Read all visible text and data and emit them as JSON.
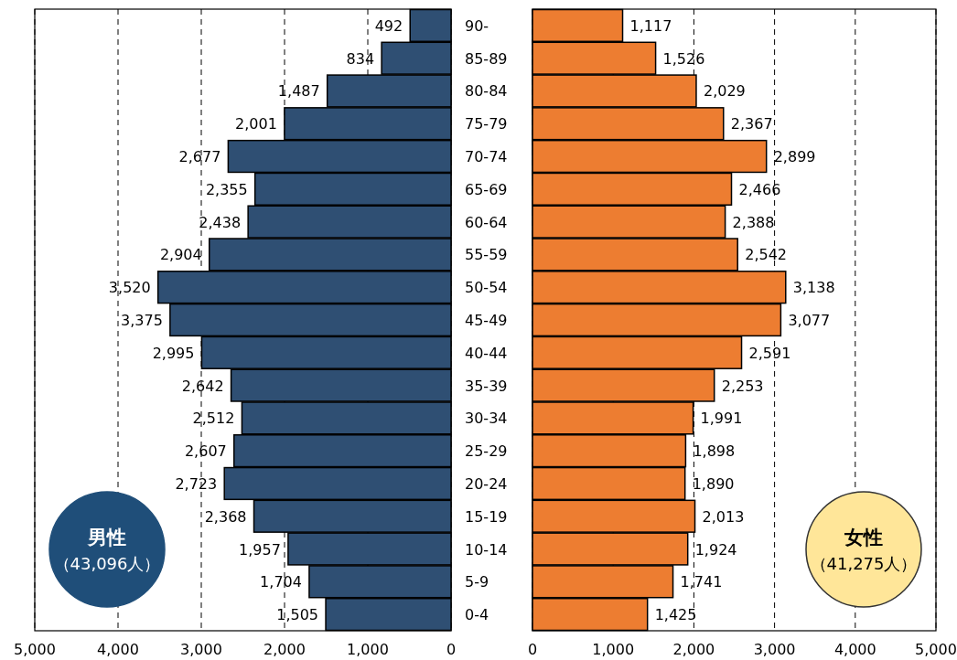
{
  "chart_data": [
    {
      "type": "bar",
      "orientation": "horizontal",
      "color": "#2f4f73",
      "grid": "x",
      "categories": [
        "90-",
        "85-89",
        "80-84",
        "75-79",
        "70-74",
        "65-69",
        "60-64",
        "55-59",
        "50-54",
        "45-49",
        "40-44",
        "35-39",
        "30-34",
        "25-29",
        "20-24",
        "15-19",
        "10-14",
        "5-9",
        "0-4"
      ],
      "values": [
        492,
        834,
        1487,
        2001,
        2677,
        2355,
        2438,
        2904,
        3520,
        3375,
        2995,
        2642,
        2512,
        2607,
        2723,
        2368,
        1957,
        1704,
        1505
      ],
      "value_labels": [
        "492",
        "834",
        "1,487",
        "2,001",
        "2,677",
        "2,355",
        "2,438",
        "2,904",
        "3,520",
        "3,375",
        "2,995",
        "2,642",
        "2,512",
        "2,607",
        "2,723",
        "2,368",
        "1,957",
        "1,704",
        "1,505"
      ],
      "xlim": [
        5000,
        0
      ],
      "xticks": [
        {
          "value": 5000,
          "label": "5,000"
        },
        {
          "value": 4000,
          "label": "4,000"
        },
        {
          "value": 3000,
          "label": "3,000"
        },
        {
          "value": 2000,
          "label": "2,000"
        },
        {
          "value": 1000,
          "label": "1,000"
        },
        0
      ],
      "annotations": [
        "男性",
        "（43,096人）"
      ]
    },
    {
      "type": "bar",
      "orientation": "horizontal",
      "color": "#ed7d31",
      "grid": "x",
      "tick_labels": "x",
      "categories": [
        null,
        null,
        null,
        null,
        null,
        null,
        null,
        null,
        null,
        null,
        null,
        null,
        null,
        null,
        null,
        null,
        null,
        null,
        null
      ],
      "values": [
        1117,
        1526,
        2029,
        2367,
        2899,
        2466,
        2388,
        2542,
        3138,
        3077,
        2591,
        2253,
        1991,
        1898,
        1890,
        2013,
        1924,
        1741,
        1425
      ],
      "value_labels": [
        "1,117",
        "1,526",
        "2,029",
        "2,367",
        "2,899",
        "2,466",
        "2,388",
        "2,542",
        "3,138",
        "3,077",
        "2,591",
        "2,253",
        "1,991",
        "1,898",
        "1,890",
        "2,013",
        "1,924",
        "1,741",
        "1,425"
      ],
      "xlim": [
        0,
        5000
      ],
      "xticks": [
        0,
        {
          "value": 1000,
          "label": "1,000"
        },
        {
          "value": 2000,
          "label": "2,000"
        },
        {
          "value": 3000,
          "label": "3,000"
        },
        {
          "value": 4000,
          "label": "4,000"
        },
        {
          "value": 5000,
          "label": "5,000"
        }
      ],
      "annotations": [
        "女性",
        "（41,275人）"
      ]
    }
  ]
}
